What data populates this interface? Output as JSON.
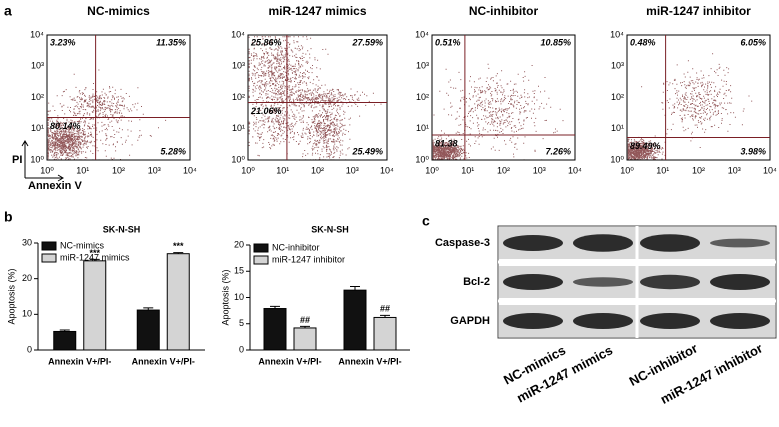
{
  "panel_labels": [
    "a",
    "b",
    "c"
  ],
  "flow_cytometry": {
    "axis_ticks": [
      "10⁰",
      "10¹",
      "10²",
      "10³",
      "10⁴"
    ],
    "y_label": "PI",
    "x_label": "Annexin V",
    "plots": [
      {
        "title": "NC-mimics",
        "quadrants": [
          "3.23%",
          "11.35%",
          "80.14%",
          "5.28%"
        ]
      },
      {
        "title": "miR-1247 mimics",
        "quadrants": [
          "25.86%",
          "27.59%",
          "21.06%",
          "25.49%"
        ]
      },
      {
        "title": "NC-inhibitor",
        "quadrants": [
          "0.51%",
          "10.85%",
          "81.38",
          "7.26%"
        ]
      },
      {
        "title": "miR-1247 inhibitor",
        "quadrants": [
          "0.48%",
          "6.05%",
          "89.49%",
          "3.98%"
        ]
      }
    ]
  },
  "chart_data": [
    {
      "type": "bar",
      "title": "SK-N-SH",
      "y_label": "Apoptosis (%)",
      "categories": [
        "Annexin V+/PI-",
        "Annexin V+/PI-"
      ],
      "series": [
        {
          "name": "NC-mimics",
          "color": "#111111",
          "values": [
            5.2,
            11.2
          ],
          "errors": [
            0.4,
            0.6
          ]
        },
        {
          "name": "miR-1247 mimics",
          "color": "#d4d4d4",
          "values": [
            25,
            27
          ],
          "errors": [
            0.4,
            0.3
          ],
          "annotations": [
            "***",
            "***"
          ]
        }
      ],
      "ylim": [
        0,
        30
      ],
      "yticks": [
        0,
        10,
        20,
        30
      ]
    },
    {
      "type": "bar",
      "title": "SK-N-SH",
      "y_label": "Apoptosis (%)",
      "categories": [
        "Annexin V+/PI-",
        "Annexin V+/PI-"
      ],
      "series": [
        {
          "name": "NC-inhibitor",
          "color": "#111111",
          "values": [
            7.9,
            11.4
          ],
          "errors": [
            0.4,
            0.7
          ]
        },
        {
          "name": "miR-1247 inhibitor",
          "color": "#d4d4d4",
          "values": [
            4.2,
            6.2
          ],
          "errors": [
            0.3,
            0.4
          ],
          "annotations": [
            "##",
            "##"
          ]
        }
      ],
      "ylim": [
        0,
        20
      ],
      "yticks": [
        0,
        5,
        10,
        15,
        20
      ]
    }
  ],
  "western_blot": {
    "proteins": [
      "Caspase-3",
      "Bcl-2",
      "GAPDH"
    ],
    "lanes": [
      "NC-mimics",
      "miR-1247 mimics",
      "NC-inhibitor",
      "miR-1247 inhibitor"
    ]
  }
}
